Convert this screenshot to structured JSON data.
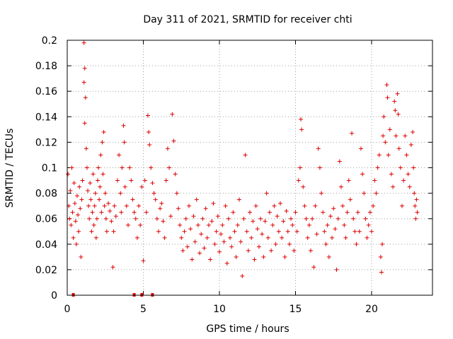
{
  "chart_data": {
    "type": "scatter",
    "title": "Day 311 of 2021, SRMTID for receiver chti",
    "xlabel": "GPS time / hours",
    "ylabel": "SRMTID / TECUs",
    "xlim": [
      0,
      24
    ],
    "ylim": [
      0,
      0.2
    ],
    "x_ticks": [
      0,
      5,
      10,
      15,
      20
    ],
    "y_ticks": [
      0,
      0.02,
      0.04,
      0.06,
      0.08,
      0.1,
      0.12,
      0.14,
      0.16,
      0.18,
      0.2
    ],
    "x_tick_labels": [
      "0",
      "5",
      "10",
      "15",
      "20"
    ],
    "y_tick_labels": [
      "0",
      "0.02",
      "0.04",
      "0.06",
      "0.08",
      "0.1",
      "0.12",
      "0.14",
      "0.16",
      "0.18",
      "0.2"
    ],
    "grid": true,
    "marker": "+",
    "color": "#dd0000",
    "series": [
      {
        "points": [
          [
            0.05,
            0.095
          ],
          [
            0.1,
            0.07
          ],
          [
            0.15,
            0.06
          ],
          [
            0.2,
            0.082
          ],
          [
            0.25,
            0.055
          ],
          [
            0.3,
            0.1
          ],
          [
            0.35,
            0.065
          ],
          [
            0.4,
            0.045
          ],
          [
            0.45,
            0.088
          ],
          [
            0.5,
            0.072
          ],
          [
            0.55,
            0.058
          ],
          [
            0.6,
            0.04
          ],
          [
            0.65,
            0.078
          ],
          [
            0.7,
            0.063
          ],
          [
            0.75,
            0.05
          ],
          [
            0.8,
            0.085
          ],
          [
            0.85,
            0.068
          ],
          [
            0.9,
            0.03
          ],
          [
            0.95,
            0.075
          ],
          [
            1.0,
            0.09
          ],
          [
            1.1,
            0.198
          ],
          [
            1.15,
            0.178
          ],
          [
            1.1,
            0.167
          ],
          [
            1.2,
            0.155
          ],
          [
            1.15,
            0.135
          ],
          [
            1.25,
            0.115
          ],
          [
            1.3,
            0.1
          ],
          [
            1.35,
            0.082
          ],
          [
            1.4,
            0.07
          ],
          [
            1.45,
            0.06
          ],
          [
            1.5,
            0.088
          ],
          [
            1.55,
            0.075
          ],
          [
            1.6,
            0.05
          ],
          [
            1.65,
            0.065
          ],
          [
            1.7,
            0.095
          ],
          [
            1.75,
            0.055
          ],
          [
            1.8,
            0.07
          ],
          [
            1.85,
            0.08
          ],
          [
            1.9,
            0.045
          ],
          [
            1.95,
            0.06
          ],
          [
            2.0,
            0.09
          ],
          [
            2.05,
            0.1
          ],
          [
            2.1,
            0.075
          ],
          [
            2.15,
            0.085
          ],
          [
            2.2,
            0.11
          ],
          [
            2.25,
            0.065
          ],
          [
            2.3,
            0.12
          ],
          [
            2.35,
            0.095
          ],
          [
            2.4,
            0.128
          ],
          [
            2.45,
            0.07
          ],
          [
            2.5,
            0.08
          ],
          [
            2.55,
            0.06
          ],
          [
            2.6,
            0.05
          ],
          [
            2.7,
            0.072
          ],
          [
            2.8,
            0.066
          ],
          [
            2.9,
            0.058
          ],
          [
            3.0,
            0.022
          ],
          [
            3.05,
            0.05
          ],
          [
            3.1,
            0.07
          ],
          [
            3.2,
            0.062
          ],
          [
            3.3,
            0.09
          ],
          [
            3.4,
            0.11
          ],
          [
            3.5,
            0.08
          ],
          [
            3.55,
            0.065
          ],
          [
            3.6,
            0.1
          ],
          [
            3.7,
            0.133
          ],
          [
            3.75,
            0.12
          ],
          [
            3.8,
            0.085
          ],
          [
            3.9,
            0.07
          ],
          [
            4.0,
            0.055
          ],
          [
            4.1,
            0.1
          ],
          [
            4.2,
            0.09
          ],
          [
            4.3,
            0.075
          ],
          [
            4.4,
            0.065
          ],
          [
            4.5,
            0.06
          ],
          [
            4.6,
            0.045
          ],
          [
            4.7,
            0.07
          ],
          [
            4.8,
            0.055
          ],
          [
            4.9,
            0.085
          ],
          [
            5.0,
            0.027
          ],
          [
            5.1,
            0.09
          ],
          [
            5.2,
            0.065
          ],
          [
            5.3,
            0.141
          ],
          [
            5.35,
            0.128
          ],
          [
            5.4,
            0.118
          ],
          [
            5.5,
            0.1
          ],
          [
            5.6,
            0.088
          ],
          [
            5.7,
            0.08
          ],
          [
            5.8,
            0.075
          ],
          [
            5.9,
            0.06
          ],
          [
            6.0,
            0.05
          ],
          [
            6.1,
            0.068
          ],
          [
            6.2,
            0.072
          ],
          [
            6.3,
            0.058
          ],
          [
            6.4,
            0.045
          ],
          [
            6.5,
            0.09
          ],
          [
            6.6,
            0.115
          ],
          [
            6.7,
            0.1
          ],
          [
            6.8,
            0.062
          ],
          [
            6.9,
            0.142
          ],
          [
            7.0,
            0.121
          ],
          [
            7.1,
            0.095
          ],
          [
            7.2,
            0.08
          ],
          [
            7.3,
            0.068
          ],
          [
            7.4,
            0.055
          ],
          [
            7.5,
            0.045
          ],
          [
            7.6,
            0.035
          ],
          [
            7.7,
            0.05
          ],
          [
            7.8,
            0.06
          ],
          [
            7.9,
            0.038
          ],
          [
            8.0,
            0.07
          ],
          [
            8.1,
            0.052
          ],
          [
            8.2,
            0.028
          ],
          [
            8.3,
            0.062
          ],
          [
            8.4,
            0.042
          ],
          [
            8.5,
            0.075
          ],
          [
            8.6,
            0.055
          ],
          [
            8.7,
            0.033
          ],
          [
            8.8,
            0.048
          ],
          [
            8.9,
            0.06
          ],
          [
            9.0,
            0.037
          ],
          [
            9.1,
            0.068
          ],
          [
            9.2,
            0.045
          ],
          [
            9.3,
            0.055
          ],
          [
            9.4,
            0.028
          ],
          [
            9.5,
            0.058
          ],
          [
            9.6,
            0.072
          ],
          [
            9.7,
            0.04
          ],
          [
            9.8,
            0.05
          ],
          [
            9.9,
            0.062
          ],
          [
            10.0,
            0.034
          ],
          [
            10.1,
            0.048
          ],
          [
            10.2,
            0.055
          ],
          [
            10.3,
            0.042
          ],
          [
            10.4,
            0.07
          ],
          [
            10.5,
            0.025
          ],
          [
            10.6,
            0.06
          ],
          [
            10.7,
            0.045
          ],
          [
            10.8,
            0.038
          ],
          [
            10.9,
            0.065
          ],
          [
            11.0,
            0.05
          ],
          [
            11.1,
            0.03
          ],
          [
            11.2,
            0.055
          ],
          [
            11.3,
            0.075
          ],
          [
            11.4,
            0.042
          ],
          [
            11.5,
            0.015
          ],
          [
            11.6,
            0.06
          ],
          [
            11.7,
            0.11
          ],
          [
            11.8,
            0.05
          ],
          [
            11.9,
            0.035
          ],
          [
            12.0,
            0.065
          ],
          [
            12.1,
            0.045
          ],
          [
            12.2,
            0.058
          ],
          [
            12.3,
            0.028
          ],
          [
            12.4,
            0.07
          ],
          [
            12.5,
            0.052
          ],
          [
            12.6,
            0.038
          ],
          [
            12.7,
            0.06
          ],
          [
            12.8,
            0.048
          ],
          [
            12.9,
            0.03
          ],
          [
            13.0,
            0.058
          ],
          [
            13.1,
            0.08
          ],
          [
            13.2,
            0.045
          ],
          [
            13.3,
            0.065
          ],
          [
            13.4,
            0.035
          ],
          [
            13.5,
            0.055
          ],
          [
            13.6,
            0.07
          ],
          [
            13.7,
            0.04
          ],
          [
            13.8,
            0.062
          ],
          [
            13.9,
            0.05
          ],
          [
            14.0,
            0.072
          ],
          [
            14.1,
            0.045
          ],
          [
            14.2,
            0.058
          ],
          [
            14.3,
            0.03
          ],
          [
            14.4,
            0.066
          ],
          [
            14.5,
            0.05
          ],
          [
            14.6,
            0.04
          ],
          [
            14.7,
            0.06
          ],
          [
            14.8,
            0.055
          ],
          [
            14.9,
            0.035
          ],
          [
            15.0,
            0.065
          ],
          [
            15.1,
            0.05
          ],
          [
            15.2,
            0.09
          ],
          [
            15.3,
            0.1
          ],
          [
            15.35,
            0.138
          ],
          [
            15.4,
            0.13
          ],
          [
            15.5,
            0.085
          ],
          [
            15.6,
            0.07
          ],
          [
            15.7,
            0.06
          ],
          [
            15.8,
            0.045
          ],
          [
            15.9,
            0.055
          ],
          [
            16.0,
            0.035
          ],
          [
            16.1,
            0.06
          ],
          [
            16.2,
            0.022
          ],
          [
            16.3,
            0.07
          ],
          [
            16.4,
            0.048
          ],
          [
            16.5,
            0.115
          ],
          [
            16.6,
            0.1
          ],
          [
            16.7,
            0.08
          ],
          [
            16.8,
            0.065
          ],
          [
            16.9,
            0.05
          ],
          [
            17.0,
            0.04
          ],
          [
            17.1,
            0.055
          ],
          [
            17.2,
            0.03
          ],
          [
            17.3,
            0.062
          ],
          [
            17.4,
            0.045
          ],
          [
            17.5,
            0.068
          ],
          [
            17.6,
            0.052
          ],
          [
            17.7,
            0.02
          ],
          [
            17.8,
            0.06
          ],
          [
            17.9,
            0.105
          ],
          [
            18.0,
            0.085
          ],
          [
            18.1,
            0.07
          ],
          [
            18.2,
            0.055
          ],
          [
            18.3,
            0.045
          ],
          [
            18.4,
            0.065
          ],
          [
            18.5,
            0.09
          ],
          [
            18.6,
            0.075
          ],
          [
            18.7,
            0.127
          ],
          [
            18.8,
            0.06
          ],
          [
            18.9,
            0.05
          ],
          [
            19.0,
            0.04
          ],
          [
            19.1,
            0.065
          ],
          [
            19.2,
            0.05
          ],
          [
            19.3,
            0.115
          ],
          [
            19.4,
            0.095
          ],
          [
            19.5,
            0.08
          ],
          [
            19.6,
            0.06
          ],
          [
            19.7,
            0.045
          ],
          [
            19.8,
            0.055
          ],
          [
            19.9,
            0.065
          ],
          [
            20.0,
            0.05
          ],
          [
            20.1,
            0.07
          ],
          [
            20.2,
            0.09
          ],
          [
            20.3,
            0.08
          ],
          [
            20.4,
            0.1
          ],
          [
            20.5,
            0.11
          ],
          [
            20.6,
            0.03
          ],
          [
            20.65,
            0.018
          ],
          [
            20.7,
            0.04
          ],
          [
            20.75,
            0.125
          ],
          [
            20.8,
            0.14
          ],
          [
            20.9,
            0.12
          ],
          [
            21.0,
            0.165
          ],
          [
            21.05,
            0.155
          ],
          [
            21.1,
            0.11
          ],
          [
            21.2,
            0.13
          ],
          [
            21.3,
            0.095
          ],
          [
            21.4,
            0.085
          ],
          [
            21.5,
            0.152
          ],
          [
            21.55,
            0.145
          ],
          [
            21.6,
            0.125
          ],
          [
            21.7,
            0.158
          ],
          [
            21.75,
            0.142
          ],
          [
            21.8,
            0.115
          ],
          [
            21.9,
            0.1
          ],
          [
            22.0,
            0.07
          ],
          [
            22.1,
            0.09
          ],
          [
            22.2,
            0.125
          ],
          [
            22.3,
            0.11
          ],
          [
            22.4,
            0.095
          ],
          [
            22.5,
            0.085
          ],
          [
            22.6,
            0.118
          ],
          [
            22.7,
            0.128
          ],
          [
            22.75,
            0.1
          ],
          [
            22.8,
            0.08
          ],
          [
            22.85,
            0.07
          ],
          [
            22.9,
            0.06
          ],
          [
            22.95,
            0.075
          ],
          [
            23.0,
            0.065
          ]
        ]
      }
    ],
    "zero_markers_x": [
      0.4,
      4.4,
      4.9,
      5.6
    ]
  }
}
